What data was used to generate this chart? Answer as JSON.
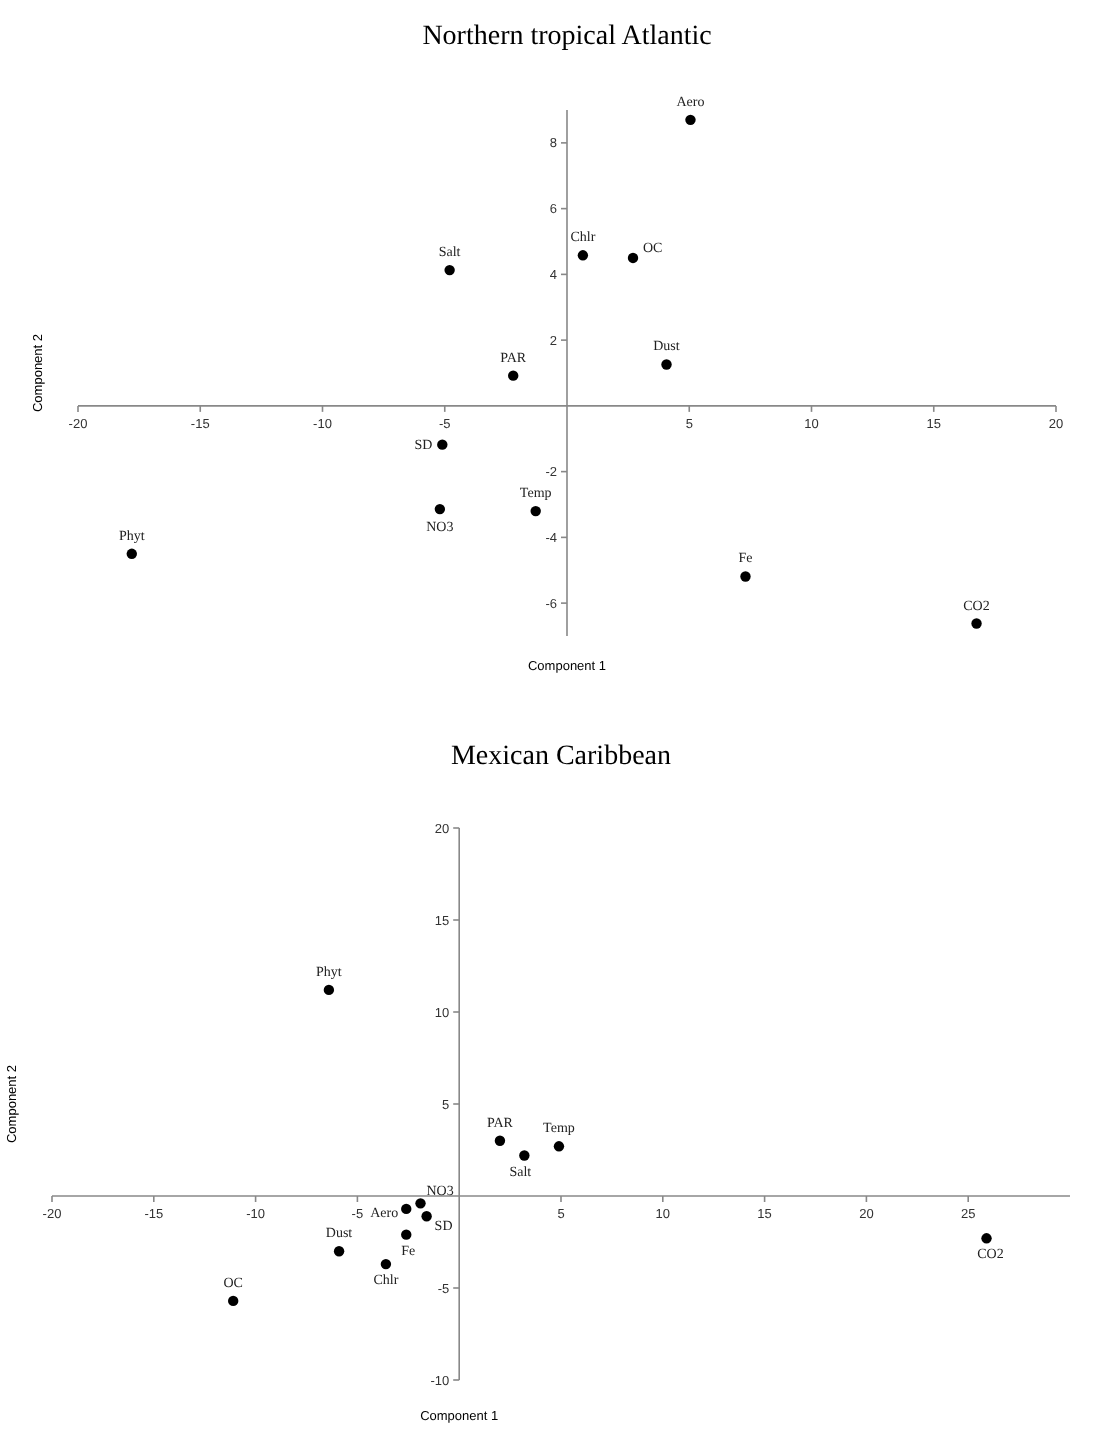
{
  "chart_data": [
    {
      "type": "scatter",
      "title": "Northern tropical Atlantic",
      "xlabel": "Component 1",
      "ylabel": "Component 2",
      "color": "#000000",
      "marker": "circle",
      "x": [
        5.05,
        0.65,
        2.7,
        -4.8,
        -2.2,
        4.07,
        -5.1,
        -5.2,
        -1.28,
        -17.8,
        7.3,
        16.75
      ],
      "values": [
        8.7,
        4.58,
        4.5,
        4.13,
        0.92,
        1.26,
        -1.18,
        -3.14,
        -3.2,
        -4.5,
        -5.19,
        -6.62
      ],
      "annotations": [
        {
          "text": "Aero",
          "x": 5.05,
          "y": 8.7
        },
        {
          "text": "Chlr",
          "x": 0.65,
          "y": 4.58
        },
        {
          "text": "OC",
          "x": 2.7,
          "y": 4.5
        },
        {
          "text": "Salt",
          "x": -4.8,
          "y": 4.13
        },
        {
          "text": "PAR",
          "x": -2.2,
          "y": 0.92
        },
        {
          "text": "Dust",
          "x": 4.07,
          "y": 1.26
        },
        {
          "text": "SD",
          "x": -5.1,
          "y": -1.18
        },
        {
          "text": "NO3",
          "x": -5.2,
          "y": -3.14
        },
        {
          "text": "Temp",
          "x": -1.28,
          "y": -3.2
        },
        {
          "text": "Phyt",
          "x": -17.8,
          "y": -4.5
        },
        {
          "text": "Fe",
          "x": 7.3,
          "y": -5.19
        },
        {
          "text": "CO2",
          "x": 16.75,
          "y": -6.62
        }
      ],
      "xlim": [
        -20,
        20
      ],
      "xticks": [
        -20,
        -15,
        -10,
        -5,
        5,
        10,
        15,
        20
      ],
      "ylim": [
        -7,
        9
      ],
      "yticks": [
        -6,
        -4,
        -2,
        2,
        4,
        6,
        8
      ]
    },
    {
      "type": "scatter",
      "title": "Mexican Caribbean",
      "xlabel": "Component 1",
      "ylabel": "Component 2",
      "color": "#000000",
      "marker": "circle",
      "x": [
        -6.4,
        2.0,
        3.2,
        4.9,
        -1.9,
        -2.6,
        -1.6,
        -2.6,
        -5.9,
        -3.6,
        -11.1,
        25.9
      ],
      "values": [
        11.2,
        3.0,
        2.2,
        2.7,
        -0.4,
        -0.7,
        -1.1,
        -2.1,
        -3.0,
        -3.7,
        -5.7,
        -2.3
      ],
      "annotations": [
        {
          "text": "Phyt",
          "x": -6.4,
          "y": 11.2
        },
        {
          "text": "PAR",
          "x": 2.0,
          "y": 3.0
        },
        {
          "text": "Salt",
          "x": 3.2,
          "y": 2.2
        },
        {
          "text": "Temp",
          "x": 4.9,
          "y": 2.7
        },
        {
          "text": "NO3",
          "x": -1.9,
          "y": -0.4
        },
        {
          "text": "Aero",
          "x": -2.6,
          "y": -0.7
        },
        {
          "text": "SD",
          "x": -1.6,
          "y": -1.1
        },
        {
          "text": "Fe",
          "x": -2.6,
          "y": -2.1
        },
        {
          "text": "Dust",
          "x": -5.9,
          "y": -3.0
        },
        {
          "text": "Chlr",
          "x": -3.6,
          "y": -3.7
        },
        {
          "text": "OC",
          "x": -11.1,
          "y": -5.7
        },
        {
          "text": "CO2",
          "x": 25.9,
          "y": -2.3
        }
      ],
      "xlim": [
        -20,
        30
      ],
      "xticks": [
        -20,
        -15,
        -10,
        -5,
        5,
        10,
        15,
        20,
        25
      ],
      "ylim": [
        -10,
        20
      ],
      "yticks": [
        -10,
        -5,
        5,
        10,
        15,
        20
      ]
    }
  ]
}
